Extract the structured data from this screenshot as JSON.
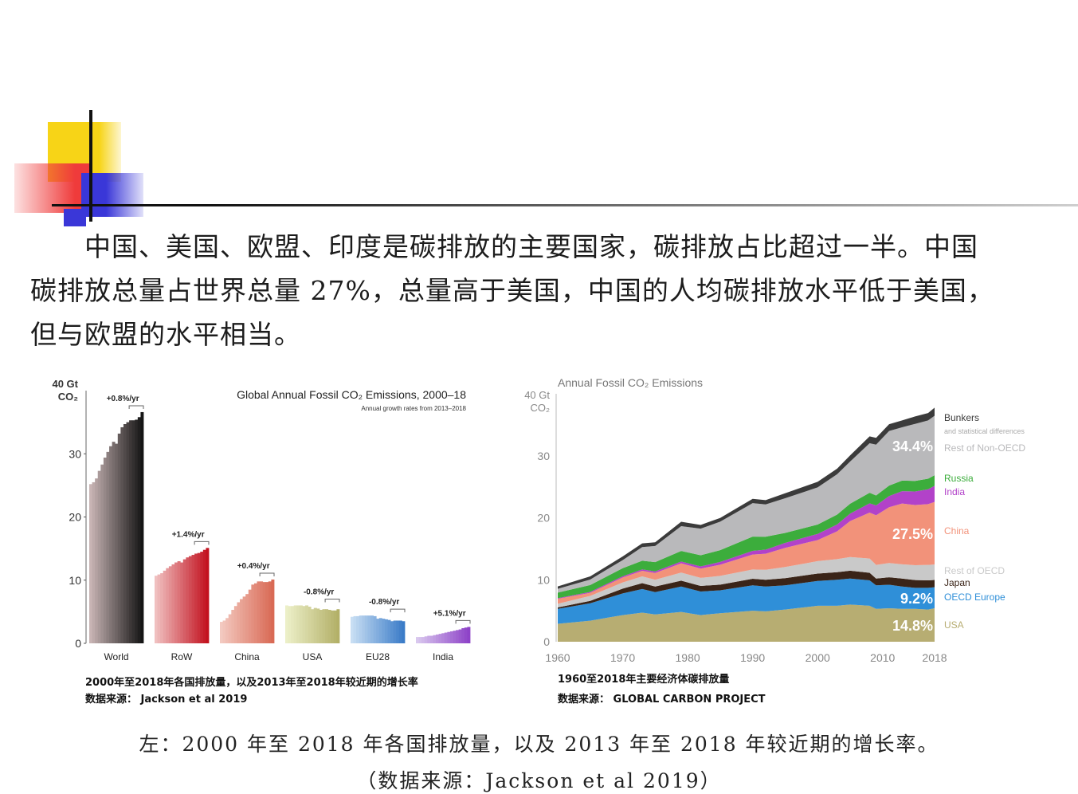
{
  "paragraph": {
    "line1": "中国、美国、欧盟、印度是碳排放的主要国家，碳排放占比超过一半。中国",
    "line2": "碳排放总量占世界总量 27%，总量高于美国，中国的人均碳排放水平低于美国，",
    "line3": "但与欧盟的水平相当。"
  },
  "left_caption": {
    "line1": "2000年至2018年各国排放量，以及2013年至2018年较近期的增长率",
    "line2": "数据来源： Jackson et al 2019"
  },
  "right_caption": {
    "line1": "1960至2018年主要经济体碳排放量",
    "line2": "数据来源： GLOBAL CARBON PROJECT"
  },
  "bottom_caption": {
    "line1": "左：2000 年至 2018 年各国排放量，以及 2013 年至 2018 年较近期的增长率。",
    "line2": "（数据来源：Jackson et al 2019）"
  },
  "colors": {
    "deco_yellow": "#f7d417",
    "deco_red": "#ef3b3b",
    "deco_blue": "#3a37d8"
  },
  "chart_data": [
    {
      "type": "bar",
      "title": "Global Annual Fossil CO₂ Emissions, 2000–18",
      "subtitle": "Annual growth rates from 2013–2018",
      "ylabel_line1": "40 Gt",
      "ylabel_line2": "CO₂",
      "ylim": [
        0,
        40
      ],
      "yticks": [
        0,
        10,
        20,
        30
      ],
      "years": [
        2000,
        2001,
        2002,
        2003,
        2004,
        2005,
        2006,
        2007,
        2008,
        2009,
        2010,
        2011,
        2012,
        2013,
        2014,
        2015,
        2016,
        2017,
        2018
      ],
      "groups": [
        {
          "name": "World",
          "rate": "+0.8%/yr",
          "color_start": "#c8b4b4",
          "color_end": "#151515",
          "values": [
            25.2,
            25.5,
            26.1,
            27.3,
            28.3,
            29.4,
            30.3,
            31.2,
            31.9,
            31.6,
            33.2,
            34.2,
            34.7,
            35.0,
            35.3,
            35.3,
            35.4,
            35.8,
            36.6
          ]
        },
        {
          "name": "RoW",
          "rate": "+1.4%/yr",
          "color_start": "#f0c0c0",
          "color_end": "#c2121f",
          "values": [
            10.7,
            10.9,
            11.1,
            11.5,
            11.9,
            12.2,
            12.5,
            12.8,
            13.0,
            12.8,
            13.3,
            13.6,
            13.8,
            14.0,
            14.2,
            14.3,
            14.5,
            14.8,
            15.1
          ]
        },
        {
          "name": "China",
          "rate": "+0.4%/yr",
          "color_start": "#f3c9c0",
          "color_end": "#d96a55",
          "values": [
            3.4,
            3.6,
            4.0,
            4.6,
            5.3,
            5.9,
            6.5,
            7.0,
            7.4,
            7.8,
            8.5,
            9.3,
            9.5,
            9.8,
            9.8,
            9.7,
            9.7,
            9.8,
            10.1
          ]
        },
        {
          "name": "USA",
          "rate": "-0.8%/yr",
          "color_start": "#ecefc8",
          "color_end": "#b3b068",
          "values": [
            6.0,
            5.9,
            5.9,
            6.0,
            6.0,
            6.0,
            5.9,
            6.0,
            5.8,
            5.4,
            5.6,
            5.5,
            5.3,
            5.4,
            5.4,
            5.3,
            5.2,
            5.2,
            5.4
          ]
        },
        {
          "name": "EU28",
          "rate": "-0.8%/yr",
          "color_start": "#c8def3",
          "color_end": "#3b7cc8",
          "values": [
            4.2,
            4.3,
            4.3,
            4.4,
            4.4,
            4.4,
            4.4,
            4.4,
            4.3,
            3.9,
            4.0,
            3.9,
            3.8,
            3.7,
            3.5,
            3.6,
            3.6,
            3.6,
            3.5
          ]
        },
        {
          "name": "India",
          "rate": "+5.1%/yr",
          "color_start": "#d9c8ee",
          "color_end": "#8e43c8",
          "values": [
            1.0,
            1.0,
            1.0,
            1.1,
            1.2,
            1.2,
            1.3,
            1.4,
            1.5,
            1.6,
            1.7,
            1.8,
            1.9,
            2.0,
            2.1,
            2.2,
            2.4,
            2.5,
            2.6
          ]
        }
      ]
    },
    {
      "type": "area",
      "title": "Annual Fossil CO₂ Emissions",
      "ylabel_line1": "40 Gt",
      "ylabel_line2": "CO₂",
      "ylim": [
        0,
        40
      ],
      "xlim": [
        1960,
        2018
      ],
      "yticks": [
        0,
        10,
        20,
        30
      ],
      "xticks": [
        1960,
        1970,
        1980,
        1990,
        2000,
        2010,
        2018
      ],
      "x": [
        1960,
        1965,
        1970,
        1973,
        1975,
        1979,
        1982,
        1985,
        1990,
        1992,
        1995,
        2000,
        2003,
        2005,
        2008,
        2009,
        2011,
        2013,
        2015,
        2017,
        2018
      ],
      "series": [
        {
          "name": "USA",
          "color": "#b7ad72",
          "share": "14.8%",
          "values": [
            2.9,
            3.4,
            4.3,
            4.7,
            4.4,
            4.8,
            4.3,
            4.6,
            5.0,
            4.9,
            5.2,
            5.8,
            5.8,
            6.0,
            5.8,
            5.3,
            5.4,
            5.3,
            5.3,
            5.2,
            5.4
          ]
        },
        {
          "name": "OECD Europe",
          "color": "#2f8fd8",
          "share": "9.2%",
          "values": [
            2.4,
            2.8,
            3.5,
            3.8,
            3.6,
            4.1,
            3.8,
            3.7,
            4.1,
            4.0,
            3.9,
            4.0,
            4.2,
            4.2,
            4.1,
            3.8,
            3.8,
            3.6,
            3.4,
            3.5,
            3.4
          ]
        },
        {
          "name": "Japan",
          "color": "#3a2418",
          "values": [
            0.23,
            0.39,
            0.77,
            0.95,
            0.9,
            0.95,
            0.9,
            0.92,
            1.06,
            1.1,
            1.15,
            1.2,
            1.22,
            1.27,
            1.23,
            1.1,
            1.2,
            1.3,
            1.25,
            1.2,
            1.16
          ]
        },
        {
          "name": "Rest of OECD",
          "color": "#c9c9c9",
          "values": [
            0.6,
            0.8,
            1.0,
            1.1,
            1.1,
            1.3,
            1.3,
            1.4,
            1.5,
            1.6,
            1.8,
            2.0,
            2.1,
            2.2,
            2.3,
            2.2,
            2.3,
            2.3,
            2.4,
            2.5,
            2.5
          ]
        },
        {
          "name": "China",
          "color": "#f2927a",
          "share": "27.5%",
          "values": [
            0.8,
            0.5,
            0.8,
            0.9,
            1.1,
            1.5,
            1.5,
            1.8,
            2.4,
            2.6,
            3.1,
            3.4,
            4.5,
            5.8,
            7.4,
            8.0,
            9.0,
            9.8,
            9.7,
            9.8,
            10.1
          ]
        },
        {
          "name": "India",
          "color": "#b242c9",
          "values": [
            0.1,
            0.15,
            0.2,
            0.22,
            0.25,
            0.3,
            0.35,
            0.45,
            0.6,
            0.65,
            0.8,
            1.0,
            1.1,
            1.2,
            1.5,
            1.6,
            1.8,
            2.0,
            2.2,
            2.4,
            2.6
          ]
        },
        {
          "name": "Russia",
          "color": "#3cad3c",
          "values": [
            0.9,
            1.1,
            1.3,
            1.4,
            1.5,
            1.7,
            1.8,
            1.9,
            2.3,
            2.1,
            1.6,
            1.5,
            1.6,
            1.6,
            1.7,
            1.6,
            1.7,
            1.7,
            1.7,
            1.7,
            1.7
          ]
        },
        {
          "name": "Rest of Non-OECD",
          "color": "#b9b9bb",
          "share": "34.4%",
          "values": [
            0.6,
            0.9,
            1.3,
            2.2,
            2.6,
            4.0,
            4.3,
            4.6,
            5.4,
            5.2,
            5.6,
            6.0,
            6.5,
            6.8,
            8.0,
            8.2,
            8.8,
            8.6,
            9.2,
            9.4,
            9.6
          ]
        },
        {
          "name": "Bunkers",
          "sub": "and statistical differences",
          "color": "#3b3b3b",
          "values": [
            0.4,
            0.5,
            0.6,
            0.6,
            0.6,
            0.7,
            0.6,
            0.6,
            0.7,
            0.7,
            0.8,
            0.9,
            0.9,
            1.0,
            1.1,
            1.1,
            1.1,
            1.1,
            1.2,
            1.2,
            1.3
          ]
        }
      ]
    }
  ]
}
